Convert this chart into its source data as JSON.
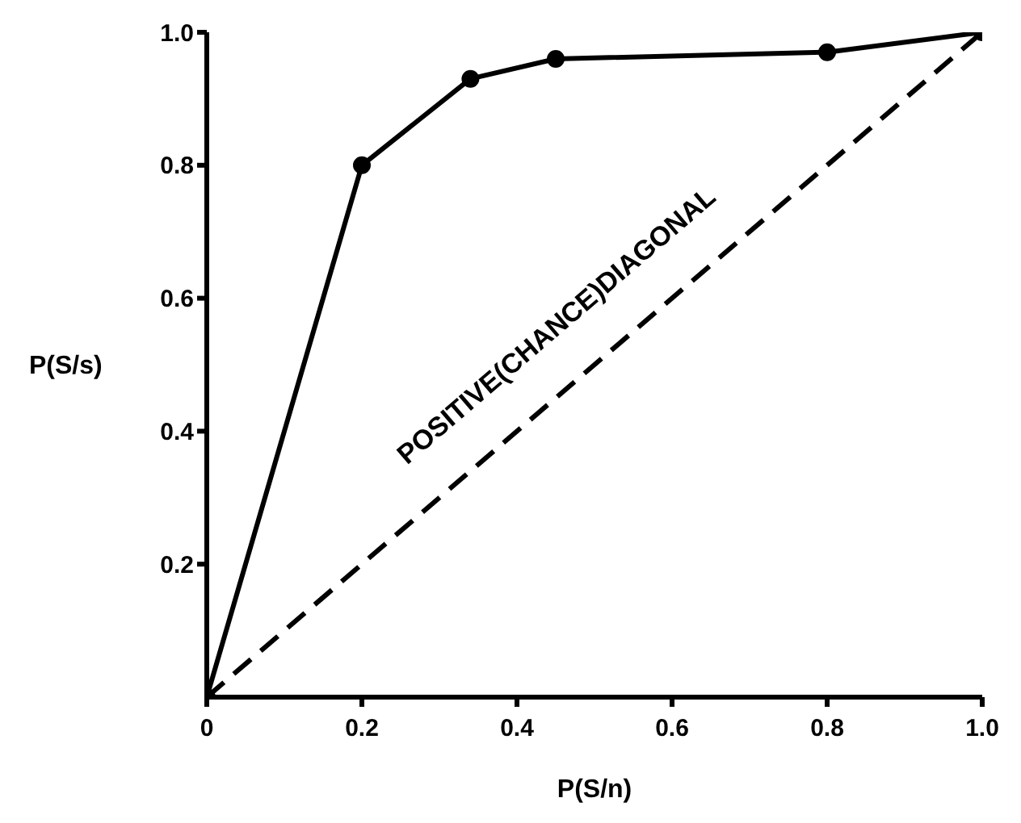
{
  "chart_data": {
    "type": "line",
    "xlabel": "P(S/n)",
    "ylabel": "P(S/s)",
    "xlim": [
      0,
      1
    ],
    "ylim": [
      0,
      1
    ],
    "xticks": [
      0,
      0.2,
      0.4,
      0.6,
      0.8,
      {
        "value": 1,
        "label": "1.0"
      }
    ],
    "yticks": [
      0.2,
      0.4,
      0.6,
      0.8,
      {
        "value": 1,
        "label": "1.0"
      }
    ],
    "grid": false,
    "legend": false,
    "series": [
      {
        "x": [
          0,
          0.2,
          0.34,
          0.45,
          0.8,
          1
        ],
        "values": [
          0,
          0.8,
          0.93,
          0.96,
          0.97,
          1
        ],
        "color": "#000000",
        "marker": "circle",
        "line_style": "solid"
      },
      {
        "name": "POSITIVE(CHANCE)DIAGONAL",
        "x": [
          0,
          1
        ],
        "values": [
          0,
          1
        ],
        "color": "#000000",
        "marker": "none",
        "line_style": "dashed"
      }
    ]
  }
}
